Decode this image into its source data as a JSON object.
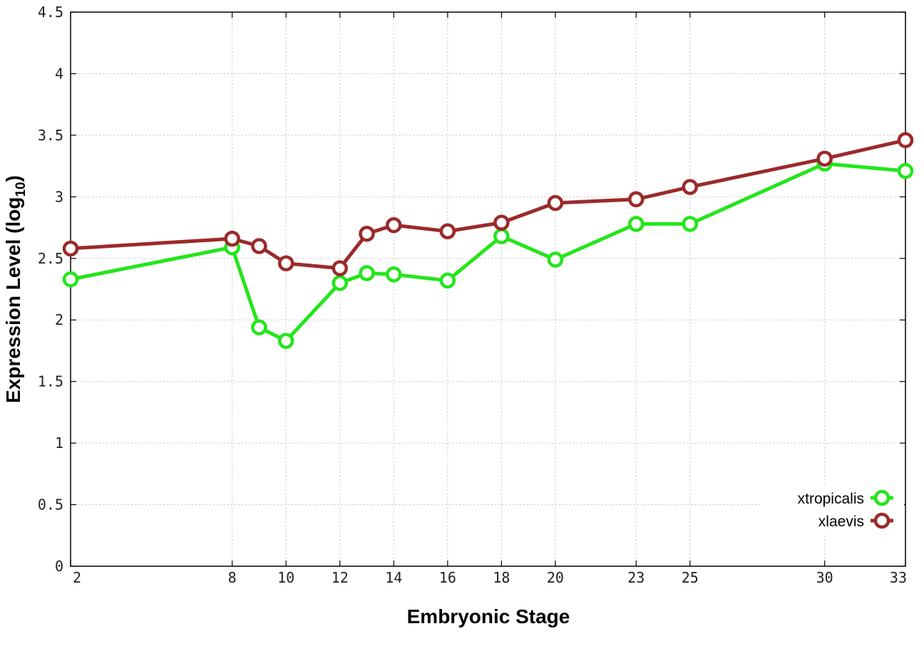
{
  "chart_data": {
    "type": "line",
    "title": "",
    "xlabel": "Embryonic Stage",
    "ylabel_main": "Expression Level (log",
    "ylabel_sub": "10",
    "ylabel_close": ")",
    "xlim": [
      2,
      33
    ],
    "ylim": [
      0,
      4.5
    ],
    "x_ticks": [
      2,
      8,
      10,
      12,
      14,
      16,
      18,
      20,
      23,
      25,
      30,
      33
    ],
    "y_ticks": [
      0,
      0.5,
      1,
      1.5,
      2,
      2.5,
      3,
      3.5,
      4,
      4.5
    ],
    "y_tick_labels": [
      "0",
      "0.5",
      "1",
      "1.5",
      "2",
      "2.5",
      "3",
      "3.5",
      "4",
      "4.5"
    ],
    "grid": true,
    "legend_position": "bottom-right",
    "series": [
      {
        "name": "xtropicalis",
        "color": "#22e61a",
        "x": [
          2,
          8,
          9,
          10,
          12,
          13,
          14,
          16,
          18,
          20,
          23,
          25,
          30,
          33
        ],
        "y": [
          2.33,
          2.59,
          1.94,
          1.83,
          2.3,
          2.38,
          2.37,
          2.32,
          2.68,
          2.49,
          2.78,
          2.78,
          3.27,
          3.21
        ]
      },
      {
        "name": "xlaevis",
        "color": "#9b2a2a",
        "x": [
          2,
          8,
          9,
          10,
          12,
          13,
          14,
          16,
          18,
          20,
          23,
          25,
          30,
          33
        ],
        "y": [
          2.58,
          2.66,
          2.6,
          2.46,
          2.42,
          2.7,
          2.77,
          2.72,
          2.79,
          2.95,
          2.98,
          3.08,
          3.31,
          3.46
        ]
      }
    ]
  }
}
